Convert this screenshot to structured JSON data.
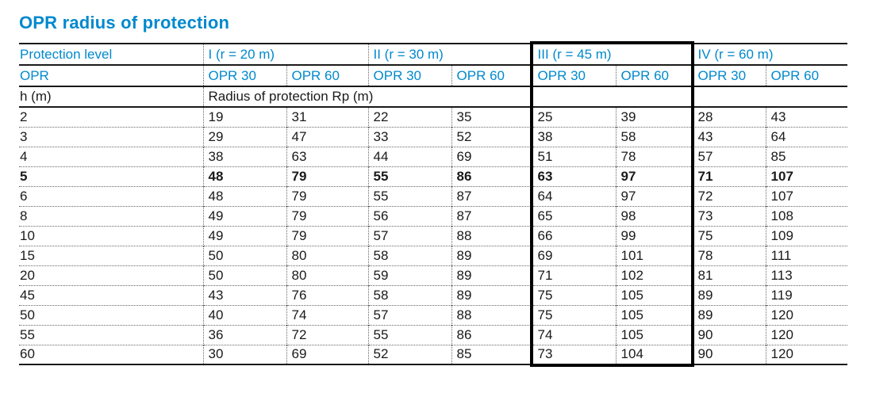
{
  "title": "OPR radius of protection",
  "colors": {
    "accent": "#0089cd",
    "text": "#1a1a1a",
    "background": "#ffffff",
    "highlight_border": "#000000"
  },
  "table": {
    "header": {
      "protection_level_label": "Protection level",
      "groups": [
        {
          "label": "I (r = 20 m)",
          "highlight": false
        },
        {
          "label": "II (r = 30 m)",
          "highlight": false
        },
        {
          "label": "III (r = 45 m)",
          "highlight": true
        },
        {
          "label": "IV (r = 60 m)",
          "highlight": false
        }
      ],
      "opr_label": "OPR",
      "opr_columns": [
        "OPR 30",
        "OPR 60",
        "OPR 30",
        "OPR 60",
        "OPR 30",
        "OPR 60",
        "OPR 30",
        "OPR 60"
      ],
      "h_label": "h (m)",
      "radius_label": "Radius of protection Rp (m)"
    },
    "rows": [
      {
        "h": "2",
        "values": [
          "19",
          "31",
          "22",
          "35",
          "25",
          "39",
          "28",
          "43"
        ],
        "bold": false
      },
      {
        "h": "3",
        "values": [
          "29",
          "47",
          "33",
          "52",
          "38",
          "58",
          "43",
          "64"
        ],
        "bold": false
      },
      {
        "h": "4",
        "values": [
          "38",
          "63",
          "44",
          "69",
          "51",
          "78",
          "57",
          "85"
        ],
        "bold": false
      },
      {
        "h": "5",
        "values": [
          "48",
          "79",
          "55",
          "86",
          "63",
          "97",
          "71",
          "107"
        ],
        "bold": true
      },
      {
        "h": "6",
        "values": [
          "48",
          "79",
          "55",
          "87",
          "64",
          "97",
          "72",
          "107"
        ],
        "bold": false
      },
      {
        "h": "8",
        "values": [
          "49",
          "79",
          "56",
          "87",
          "65",
          "98",
          "73",
          "108"
        ],
        "bold": false
      },
      {
        "h": "10",
        "values": [
          "49",
          "79",
          "57",
          "88",
          "66",
          "99",
          "75",
          "109"
        ],
        "bold": false
      },
      {
        "h": "15",
        "values": [
          "50",
          "80",
          "58",
          "89",
          "69",
          "101",
          "78",
          "111"
        ],
        "bold": false
      },
      {
        "h": "20",
        "values": [
          "50",
          "80",
          "59",
          "89",
          "71",
          "102",
          "81",
          "113"
        ],
        "bold": false
      },
      {
        "h": "45",
        "values": [
          "43",
          "76",
          "58",
          "89",
          "75",
          "105",
          "89",
          "119"
        ],
        "bold": false
      },
      {
        "h": "50",
        "values": [
          "40",
          "74",
          "57",
          "88",
          "75",
          "105",
          "89",
          "120"
        ],
        "bold": false
      },
      {
        "h": "55",
        "values": [
          "36",
          "72",
          "55",
          "86",
          "74",
          "105",
          "90",
          "120"
        ],
        "bold": false
      },
      {
        "h": "60",
        "values": [
          "30",
          "69",
          "52",
          "85",
          "73",
          "104",
          "90",
          "120"
        ],
        "bold": false
      }
    ]
  }
}
